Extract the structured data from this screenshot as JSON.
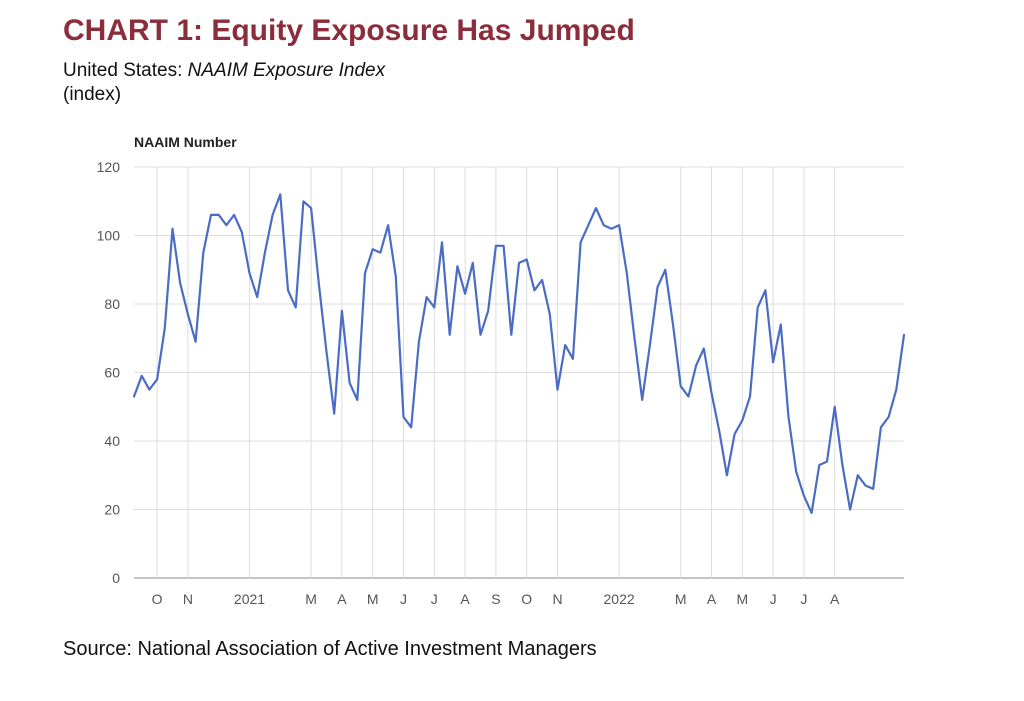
{
  "header": {
    "title": "CHART 1: Equity Exposure Has Jumped",
    "subtitle_prefix": "United States: ",
    "subtitle_italic": "NAAIM Exposure Index",
    "unit": "(index)"
  },
  "footer": {
    "source": "Source: National Association of Active Investment Managers"
  },
  "colors": {
    "title": "#8B2D3B",
    "line": "#4A6CC4",
    "grid": "#DDDDDD",
    "axis": "#888888"
  },
  "chart_data": {
    "type": "line",
    "ylabel": "NAAIM Number",
    "xlabel": "",
    "ylim": [
      0,
      120
    ],
    "yticks": [
      0,
      20,
      40,
      60,
      80,
      100,
      120
    ],
    "grid": true,
    "x_tick_labels": [
      "O",
      "N",
      "2021",
      "M",
      "A",
      "M",
      "J",
      "J",
      "A",
      "S",
      "O",
      "N",
      "2022",
      "M",
      "A",
      "M",
      "J",
      "J",
      "A"
    ],
    "x_tick_index": [
      3,
      7,
      15,
      23,
      27,
      31,
      35,
      39,
      43,
      47,
      51,
      55,
      63,
      71,
      75,
      79,
      83,
      87,
      91
    ],
    "series": [
      {
        "values": [
          53,
          59,
          55,
          58,
          73,
          102,
          86,
          77,
          69,
          95,
          106,
          106,
          103,
          106,
          101,
          89,
          82,
          95,
          106,
          112,
          84,
          79,
          110,
          108,
          86,
          66,
          48,
          78,
          57,
          52,
          89,
          96,
          95,
          103,
          88,
          47,
          44,
          69,
          82,
          79,
          98,
          71,
          91,
          83,
          92,
          71,
          78,
          97,
          97,
          71,
          92,
          93,
          84,
          87,
          77,
          55,
          68,
          64,
          98,
          103,
          108,
          103,
          102,
          103,
          89,
          70,
          52,
          68,
          85,
          90,
          74,
          56,
          53,
          62,
          67,
          54,
          43,
          30,
          42,
          46,
          53,
          79,
          84,
          63,
          74,
          47,
          31,
          24,
          19,
          33,
          34,
          50,
          33,
          20,
          30,
          27,
          26,
          44,
          47,
          55,
          71
        ]
      }
    ]
  }
}
